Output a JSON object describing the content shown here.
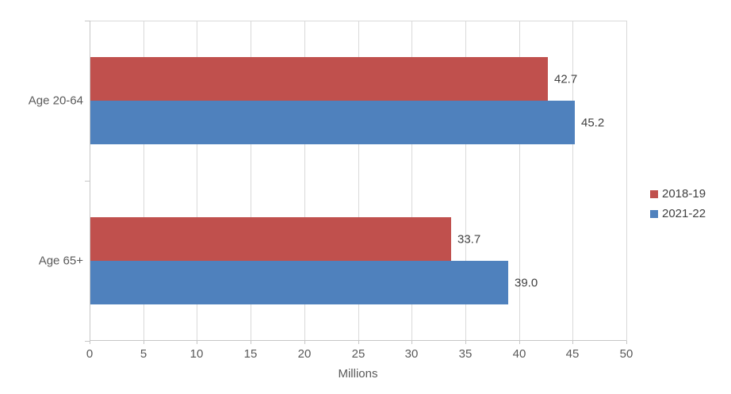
{
  "chart_data": {
    "type": "bar",
    "orientation": "horizontal",
    "title": "",
    "categories": [
      "Age 20-64",
      "Age 65+"
    ],
    "series": [
      {
        "name": "2018-19",
        "color": "#C0504D",
        "values": [
          42.7,
          33.7
        ],
        "value_labels": [
          "42.7",
          "33.7"
        ]
      },
      {
        "name": "2021-22",
        "color": "#4F81BD",
        "values": [
          45.2,
          39.0
        ],
        "value_labels": [
          "45.2",
          "39.0"
        ]
      }
    ],
    "xlabel": "Millions",
    "ylabel": "",
    "xlim": [
      0,
      50
    ],
    "xticks": [
      0,
      5,
      10,
      15,
      20,
      25,
      30,
      35,
      40,
      45,
      50
    ],
    "grid": "vertical",
    "legend_position": "right",
    "data_labels": "outside-end"
  },
  "colors": {
    "background": "#FFFFFF",
    "gridline": "#D9D9D9",
    "axis_line": "#C6C6C6",
    "tick_label": "#595959",
    "category_label": "#595959",
    "data_label": "#404040",
    "legend_label": "#404040"
  }
}
